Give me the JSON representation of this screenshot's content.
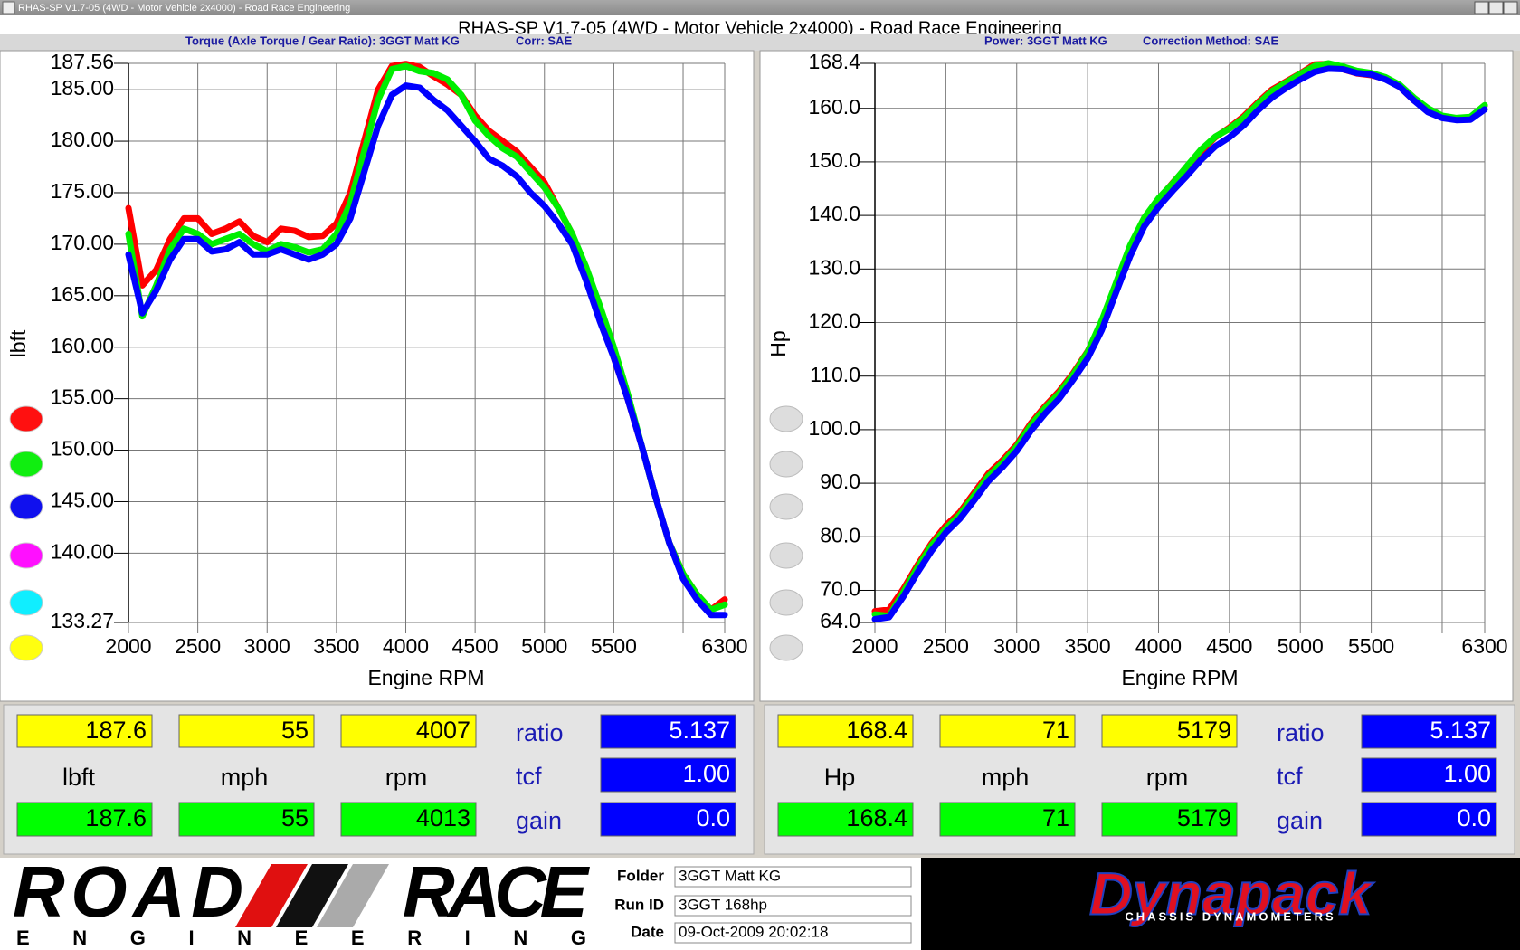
{
  "window": {
    "title": "RHAS-SP V1.7-05  (4WD - Motor Vehicle 2x4000) - Road Race Engineering",
    "caption": "RHAS-SP V1.7-05   (4WD - Motor Vehicle 2x4000) - Road Race Engineering"
  },
  "chart_data": [
    {
      "type": "line",
      "header": "Torque (Axle Torque / Gear Ratio): 3GGT Matt KG",
      "corr": "Corr: SAE",
      "x_label": "Engine RPM",
      "y_label": "lbft",
      "x": [
        2000,
        2100,
        2200,
        2300,
        2400,
        2500,
        2600,
        2700,
        2800,
        2900,
        3000,
        3100,
        3200,
        3300,
        3400,
        3500,
        3600,
        3700,
        3800,
        3900,
        4000,
        4100,
        4200,
        4300,
        4400,
        4500,
        4600,
        4700,
        4800,
        4900,
        5000,
        5100,
        5200,
        5300,
        5400,
        5500,
        5600,
        5700,
        5800,
        5900,
        6000,
        6100,
        6200,
        6300
      ],
      "xlim": [
        2000,
        6300
      ],
      "xticks": [
        2000,
        2500,
        3000,
        3500,
        4000,
        4500,
        5000,
        5500,
        6300
      ],
      "xgrid": [
        2000,
        2500,
        3000,
        3500,
        4000,
        4500,
        5000,
        5500,
        6000,
        6300
      ],
      "ylim": [
        133.27,
        187.56
      ],
      "yticks": [
        187.56,
        {
          "value": 185,
          "label": "185.00"
        },
        {
          "value": 180,
          "label": "180.00"
        },
        {
          "value": 175,
          "label": "175.00"
        },
        {
          "value": 170,
          "label": "170.00"
        },
        {
          "value": 165,
          "label": "165.00"
        },
        {
          "value": 160,
          "label": "160.00"
        },
        {
          "value": 155,
          "label": "155.00"
        },
        {
          "value": 150,
          "label": "150.00"
        },
        {
          "value": 145,
          "label": "145.00"
        },
        {
          "value": 140,
          "label": "140.00"
        },
        133.27
      ],
      "grid": true,
      "series": [
        {
          "color": "#ff0000",
          "values": [
            173.5,
            166,
            167.5,
            170.5,
            172.5,
            172.5,
            171,
            171.5,
            172.2,
            170.8,
            170.2,
            171.5,
            171.3,
            170.7,
            170.8,
            172,
            175,
            180,
            185,
            187.3,
            187.5,
            187.2,
            186.3,
            185.5,
            184.5,
            182.5,
            181,
            180,
            179,
            177.5,
            176,
            173.5,
            171,
            167.5,
            163.5,
            159,
            155,
            150.5,
            145.5,
            141,
            138,
            136,
            134.5,
            135.5
          ]
        },
        {
          "color": "#00ee00",
          "values": [
            171,
            163,
            166,
            169.5,
            171.5,
            171,
            170,
            170.5,
            171,
            170,
            169.3,
            170,
            169.7,
            169.2,
            169.5,
            171,
            174,
            179,
            184,
            187,
            187.3,
            186.8,
            186.6,
            186,
            184.5,
            182,
            180.5,
            179.3,
            178.5,
            177,
            175.5,
            173.5,
            171,
            167.8,
            164,
            160,
            155.5,
            150.5,
            145.5,
            141,
            138,
            136,
            134.5,
            135
          ]
        },
        {
          "color": "#0000ff",
          "values": [
            169,
            163.3,
            165.5,
            168.5,
            170.5,
            170.5,
            169.3,
            169.5,
            170.2,
            169,
            169,
            169.5,
            169,
            168.5,
            169,
            170,
            172.5,
            177,
            181.5,
            184.5,
            185.4,
            185.2,
            184,
            183,
            181.5,
            180,
            178.3,
            177.6,
            176.6,
            175,
            173.7,
            172,
            170,
            166.5,
            162.5,
            159,
            155,
            150.5,
            145.5,
            141,
            137.5,
            135.5,
            134,
            134
          ]
        }
      ]
    },
    {
      "type": "line",
      "header": "Power: 3GGT Matt KG",
      "corr": "Correction Method: SAE",
      "x_label": "Engine RPM",
      "y_label": "Hp",
      "x": [
        2000,
        2100,
        2200,
        2300,
        2400,
        2500,
        2600,
        2700,
        2800,
        2900,
        3000,
        3100,
        3200,
        3300,
        3400,
        3500,
        3600,
        3700,
        3800,
        3900,
        4000,
        4100,
        4200,
        4300,
        4400,
        4500,
        4600,
        4700,
        4800,
        4900,
        5000,
        5100,
        5200,
        5300,
        5400,
        5500,
        5600,
        5700,
        5800,
        5900,
        6000,
        6100,
        6200,
        6300
      ],
      "xlim": [
        2000,
        6300
      ],
      "xticks": [
        2000,
        2500,
        3000,
        3500,
        4000,
        4500,
        5000,
        5500,
        6300
      ],
      "xgrid": [
        2000,
        2500,
        3000,
        3500,
        4000,
        4500,
        5000,
        5500,
        6000,
        6300
      ],
      "ylim": [
        64,
        168.4
      ],
      "yticks": [
        168.4,
        {
          "value": 160,
          "label": "160.0"
        },
        {
          "value": 150,
          "label": "150.0"
        },
        {
          "value": 140,
          "label": "140.0"
        },
        {
          "value": 130,
          "label": "130.0"
        },
        {
          "value": 120,
          "label": "120.0"
        },
        {
          "value": 110,
          "label": "110.0"
        },
        {
          "value": 100,
          "label": "100.0"
        },
        {
          "value": 90,
          "label": "90.0"
        },
        {
          "value": 80,
          "label": "80.0"
        },
        {
          "value": 70,
          "label": "70.0"
        },
        {
          "value": 64,
          "label": "64.0"
        }
      ],
      "grid": true,
      "series": [
        {
          "color": "#ff0000",
          "values": [
            66.1,
            66.4,
            70.2,
            74.7,
            78.8,
            82.1,
            84.6,
            88.2,
            91.8,
            94.3,
            97.2,
            101.2,
            104.4,
            107.2,
            110.6,
            114.6,
            120.0,
            126.8,
            133.8,
            139.1,
            143.0,
            146.1,
            149.0,
            151.9,
            154.6,
            156.4,
            158.5,
            161.1,
            163.5,
            165.0,
            166.5,
            168.2,
            168.3,
            167.3,
            166.5,
            166.2,
            165.5,
            164.0,
            161.5,
            159.5,
            158.3,
            158.0,
            158.2,
            160.5
          ]
        },
        {
          "color": "#00ee00",
          "values": [
            65.5,
            65.2,
            69.6,
            74.2,
            78.4,
            81.5,
            84.1,
            87.7,
            91.3,
            93.8,
            96.8,
            100.8,
            104.0,
            106.8,
            110.3,
            114.5,
            120.4,
            127.4,
            134.4,
            139.6,
            143.2,
            146.0,
            149.2,
            152.3,
            154.7,
            156.2,
            158.2,
            160.8,
            163.2,
            164.8,
            166.4,
            167.9,
            168.4,
            167.8,
            167.0,
            166.6,
            165.8,
            164.4,
            162.0,
            160.0,
            158.6,
            158.2,
            158.4,
            160.6
          ]
        },
        {
          "color": "#0000ff",
          "values": [
            64.6,
            65.0,
            68.8,
            73.3,
            77.4,
            80.8,
            83.4,
            86.8,
            90.4,
            93.0,
            96.0,
            99.8,
            103.0,
            105.8,
            109.4,
            113.3,
            118.6,
            125.6,
            132.4,
            138.0,
            141.6,
            144.6,
            147.4,
            150.4,
            152.9,
            154.6,
            156.8,
            159.6,
            162.0,
            163.8,
            165.4,
            166.8,
            167.4,
            167.3,
            166.6,
            166.3,
            165.4,
            164.0,
            161.5,
            159.3,
            158.2,
            157.8,
            157.9,
            159.8
          ]
        }
      ]
    }
  ],
  "readouts": [
    {
      "top": [
        "187.6",
        "55",
        "4007"
      ],
      "units": [
        "lbft",
        "mph",
        "rpm"
      ],
      "bottom": [
        "187.6",
        "55",
        "4013"
      ],
      "params": [
        {
          "name": "ratio",
          "value": "5.137"
        },
        {
          "name": "tcf",
          "value": "1.00"
        },
        {
          "name": "gain",
          "value": "0.0"
        }
      ]
    },
    {
      "top": [
        "168.4",
        "71",
        "5179"
      ],
      "units": [
        "Hp",
        "mph",
        "rpm"
      ],
      "bottom": [
        "168.4",
        "71",
        "5179"
      ],
      "params": [
        {
          "name": "ratio",
          "value": "5.137"
        },
        {
          "name": "tcf",
          "value": "1.00"
        },
        {
          "name": "gain",
          "value": "0.0"
        }
      ]
    }
  ],
  "footer": {
    "logo": {
      "road": "ROAD",
      "race": "RACE",
      "engineering": "ENGINEERING"
    },
    "fields": [
      {
        "label": "Folder",
        "value": "3GGT Matt KG"
      },
      {
        "label": "Run ID",
        "value": "3GGT 168hp"
      },
      {
        "label": "Date",
        "value": "09-Oct-2009  20:02:18"
      }
    ],
    "brand": {
      "name": "Dynapack",
      "tagline": "CHASSIS DYNAMOMETERS"
    }
  }
}
